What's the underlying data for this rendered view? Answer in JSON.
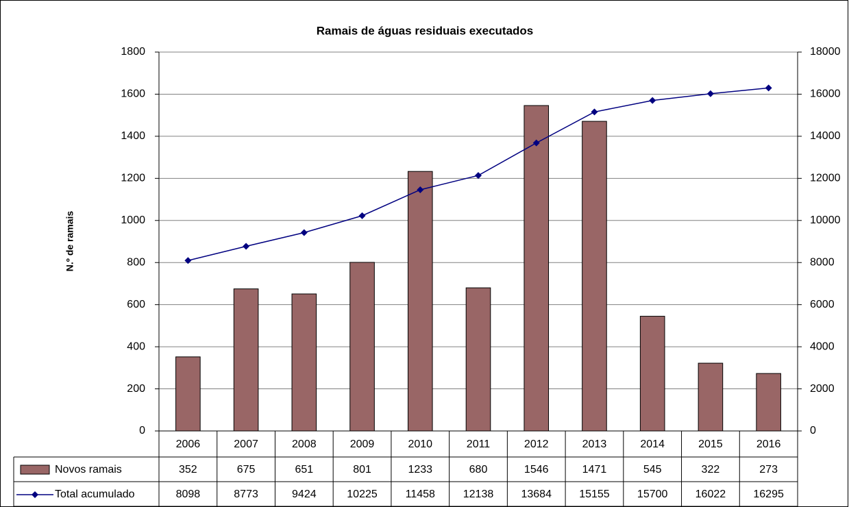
{
  "chart_data": {
    "type": "bar",
    "title": "Ramais de águas residuais executados",
    "y_label": "N.º de ramais",
    "categories": [
      "2006",
      "2007",
      "2008",
      "2009",
      "2010",
      "2011",
      "2012",
      "2013",
      "2014",
      "2015",
      "2016"
    ],
    "series": [
      {
        "name": "Novos ramais",
        "type": "bar",
        "color": "#996666",
        "values": [
          352,
          675,
          651,
          801,
          1233,
          680,
          1546,
          1471,
          545,
          322,
          273
        ]
      },
      {
        "name": "Total acumulado",
        "type": "line",
        "axis": "y2",
        "color": "#000080",
        "values": [
          8098,
          8773,
          9424,
          10225,
          11458,
          12138,
          13684,
          15155,
          15700,
          16022,
          16295
        ]
      }
    ],
    "ylim": [
      0,
      1800
    ],
    "yticks": [
      0,
      200,
      400,
      600,
      800,
      1000,
      1200,
      1400,
      1600,
      1800
    ],
    "y2lim": [
      0,
      18000
    ],
    "y2ticks": [
      0,
      2000,
      4000,
      6000,
      8000,
      10000,
      12000,
      14000,
      16000,
      18000
    ],
    "grid": true
  }
}
